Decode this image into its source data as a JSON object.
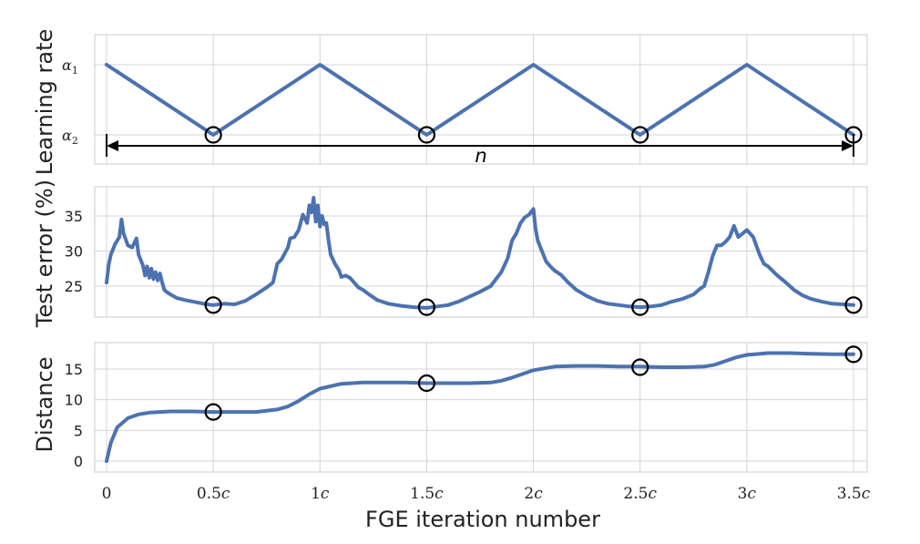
{
  "chart_data": [
    {
      "type": "line",
      "ylabel": "Learning rate",
      "xlim": [
        0,
        3.5
      ],
      "yticks": [
        {
          "label": "α₁",
          "sub": "1",
          "value": 1
        },
        {
          "label": "α₂",
          "sub": "2",
          "value": 0
        }
      ],
      "series": [
        {
          "x": [
            0,
            0.5,
            1,
            1.5,
            2,
            2.5,
            3,
            3.5
          ],
          "y": [
            1,
            0,
            1,
            0,
            1,
            0,
            1,
            0
          ]
        }
      ],
      "markers": {
        "x": [
          0.5,
          1.5,
          2.5,
          3.5
        ],
        "y": [
          0,
          0,
          0,
          0
        ]
      },
      "annotation": {
        "text": "n",
        "from": 0,
        "to": 3.5
      }
    },
    {
      "type": "line",
      "ylabel": "Test error (%)",
      "xlim": [
        0,
        3.5
      ],
      "ylim": [
        21,
        39
      ],
      "yticks": [
        25,
        30,
        35
      ],
      "series": [
        {
          "x": [
            0,
            0.01,
            0.02,
            0.04,
            0.06,
            0.07,
            0.08,
            0.1,
            0.12,
            0.14,
            0.15,
            0.17,
            0.18,
            0.19,
            0.2,
            0.21,
            0.22,
            0.23,
            0.24,
            0.25,
            0.26,
            0.27,
            0.28,
            0.3,
            0.33,
            0.37,
            0.42,
            0.47,
            0.5,
            0.55,
            0.6,
            0.65,
            0.7,
            0.73,
            0.75,
            0.78,
            0.8,
            0.82,
            0.85,
            0.86,
            0.88,
            0.9,
            0.92,
            0.94,
            0.95,
            0.96,
            0.97,
            0.98,
            0.99,
            1.0,
            1.01,
            1.02,
            1.03,
            1.04,
            1.05,
            1.07,
            1.09,
            1.1,
            1.12,
            1.14,
            1.16,
            1.18,
            1.2,
            1.23,
            1.27,
            1.32,
            1.38,
            1.44,
            1.5,
            1.55,
            1.6,
            1.65,
            1.7,
            1.75,
            1.8,
            1.85,
            1.88,
            1.9,
            1.92,
            1.94,
            1.96,
            1.98,
            1.99,
            2.0,
            2.01,
            2.02,
            2.04,
            2.06,
            2.08,
            2.1,
            2.13,
            2.16,
            2.2,
            2.25,
            2.3,
            2.35,
            2.4,
            2.45,
            2.5,
            2.55,
            2.6,
            2.65,
            2.7,
            2.75,
            2.78,
            2.8,
            2.82,
            2.84,
            2.86,
            2.88,
            2.9,
            2.92,
            2.94,
            2.96,
            2.98,
            3.0,
            3.03,
            3.06,
            3.08,
            3.1,
            3.14,
            3.18,
            3.22,
            3.26,
            3.3,
            3.35,
            3.4,
            3.45,
            3.5
          ],
          "y": [
            25.5,
            28,
            29.5,
            31,
            32,
            34.5,
            32.5,
            30.8,
            30.5,
            31.8,
            29.5,
            28,
            26.5,
            27.8,
            26.2,
            27.5,
            26,
            27,
            25.8,
            26.8,
            25.6,
            24.5,
            24.2,
            23.8,
            23.3,
            23,
            22.7,
            22.4,
            22.3,
            22.5,
            22.4,
            22.9,
            23.8,
            24.4,
            24.8,
            25.5,
            28.2,
            28.8,
            30.5,
            31.8,
            32,
            33,
            35.2,
            34,
            36.5,
            35.5,
            37.6,
            34.2,
            36.5,
            33.5,
            35,
            33.8,
            34,
            31.5,
            29.5,
            28.2,
            27.2,
            26.3,
            26.5,
            26.2,
            25.5,
            24.8,
            24.5,
            23.8,
            23,
            22.5,
            22.2,
            22,
            21.9,
            22.1,
            22.3,
            22.8,
            23.5,
            24.2,
            25,
            27,
            29,
            31.5,
            32.5,
            34,
            34.8,
            35.2,
            35.6,
            36,
            33.2,
            31.5,
            30,
            28.5,
            27.8,
            27.2,
            26.6,
            25.6,
            24.5,
            23.6,
            22.9,
            22.5,
            22.3,
            22.1,
            22,
            22.1,
            22.3,
            22.8,
            23.2,
            23.8,
            24.6,
            25,
            27,
            29.3,
            30.8,
            30.8,
            31.3,
            32,
            33.6,
            32,
            32.5,
            33,
            32,
            29.5,
            28.2,
            27.8,
            26.6,
            25.6,
            24.5,
            23.7,
            23.2,
            22.8,
            22.5,
            22.4,
            22.3
          ]
        }
      ],
      "markers": {
        "x": [
          0.5,
          1.5,
          2.5,
          3.5
        ],
        "y": [
          22.3,
          22.0,
          22.0,
          22.3
        ]
      }
    },
    {
      "type": "line",
      "ylabel": "Distance",
      "xlim": [
        0,
        3.5
      ],
      "ylim": [
        -2,
        20
      ],
      "yticks": [
        0,
        5,
        10,
        15
      ],
      "series": [
        {
          "x": [
            0,
            0.02,
            0.05,
            0.1,
            0.15,
            0.2,
            0.3,
            0.4,
            0.5,
            0.6,
            0.7,
            0.8,
            0.85,
            0.9,
            0.95,
            1.0,
            1.1,
            1.2,
            1.3,
            1.4,
            1.5,
            1.6,
            1.7,
            1.8,
            1.85,
            1.9,
            1.95,
            2.0,
            2.1,
            2.2,
            2.3,
            2.4,
            2.5,
            2.6,
            2.7,
            2.8,
            2.85,
            2.9,
            2.95,
            3.0,
            3.1,
            3.2,
            3.3,
            3.4,
            3.5
          ],
          "y": [
            0,
            3,
            5.5,
            7,
            7.6,
            7.9,
            8.1,
            8.1,
            8.0,
            8.0,
            8.0,
            8.4,
            8.9,
            9.8,
            10.9,
            11.8,
            12.6,
            12.8,
            12.8,
            12.8,
            12.7,
            12.7,
            12.7,
            12.8,
            13.1,
            13.6,
            14.2,
            14.8,
            15.4,
            15.5,
            15.5,
            15.4,
            15.4,
            15.3,
            15.3,
            15.4,
            15.7,
            16.3,
            16.9,
            17.3,
            17.6,
            17.6,
            17.5,
            17.4,
            17.4
          ]
        }
      ],
      "markers": {
        "x": [
          0.5,
          1.5,
          2.5,
          3.5
        ],
        "y": [
          8.0,
          12.7,
          15.3,
          17.4
        ]
      }
    }
  ],
  "xaxis": {
    "label": "FGE iteration number",
    "ticks": [
      {
        "value": 0,
        "num": "0",
        "suffix": ""
      },
      {
        "value": 0.5,
        "num": "0.5",
        "suffix": "c"
      },
      {
        "value": 1,
        "num": "1",
        "suffix": "c"
      },
      {
        "value": 1.5,
        "num": "1.5",
        "suffix": "c"
      },
      {
        "value": 2,
        "num": "2",
        "suffix": "c"
      },
      {
        "value": 2.5,
        "num": "2.5",
        "suffix": "c"
      },
      {
        "value": 3,
        "num": "3",
        "suffix": "c"
      },
      {
        "value": 3.5,
        "num": "3.5",
        "suffix": "c"
      }
    ]
  },
  "colors": {
    "line": "#4c72b0",
    "marker": "#000000",
    "grid": "#d4d4d4"
  }
}
